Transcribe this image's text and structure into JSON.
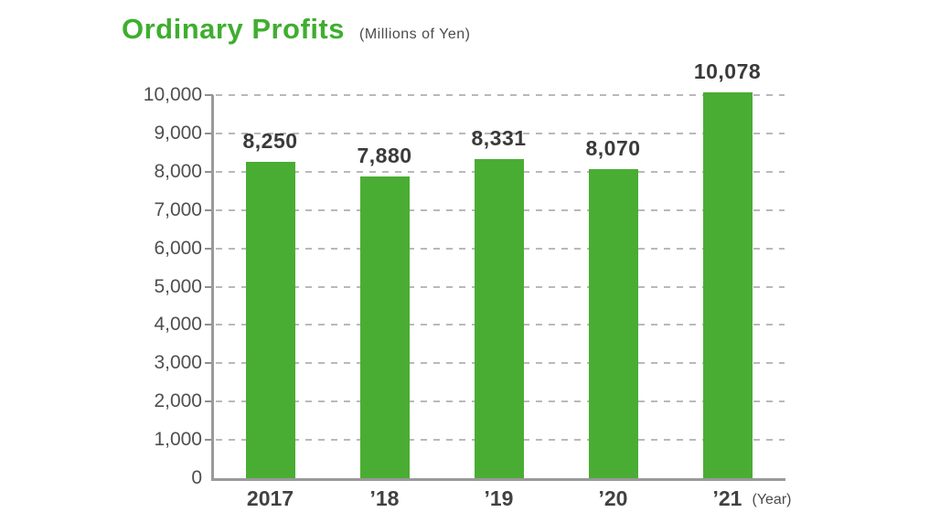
{
  "header": {
    "title": "Ordinary Profits",
    "subtitle": "(Millions of Yen)"
  },
  "chart_data": {
    "type": "bar",
    "title": "Ordinary Profits",
    "subtitle_units": "(Millions of Yen)",
    "categories": [
      "2017",
      "’18",
      "’19",
      "’20",
      "’21"
    ],
    "values": [
      8250,
      7880,
      8331,
      8070,
      10078
    ],
    "value_labels": [
      "8,250",
      "7,880",
      "8,331",
      "8,070",
      "10,078"
    ],
    "xlabel": "(Year)",
    "ylabel": "",
    "ylim": [
      0,
      10000
    ],
    "ytick_step": 1000,
    "ytick_labels": [
      "0",
      "1,000",
      "2,000",
      "3,000",
      "4,000",
      "5,000",
      "6,000",
      "7,000",
      "8,000",
      "9,000",
      "10,000"
    ],
    "grid": "horizontal-dashed",
    "legend": "none",
    "bar_color": "#4aad33"
  },
  "colors": {
    "title_green": "#3fae2f",
    "bar_green": "#4aad33",
    "value_label": "#3a3a3a",
    "axis_line": "#9a9a9a",
    "gridline": "#b9b9b9",
    "tick_label": "#4f4f4f",
    "background": "#ffffff"
  }
}
